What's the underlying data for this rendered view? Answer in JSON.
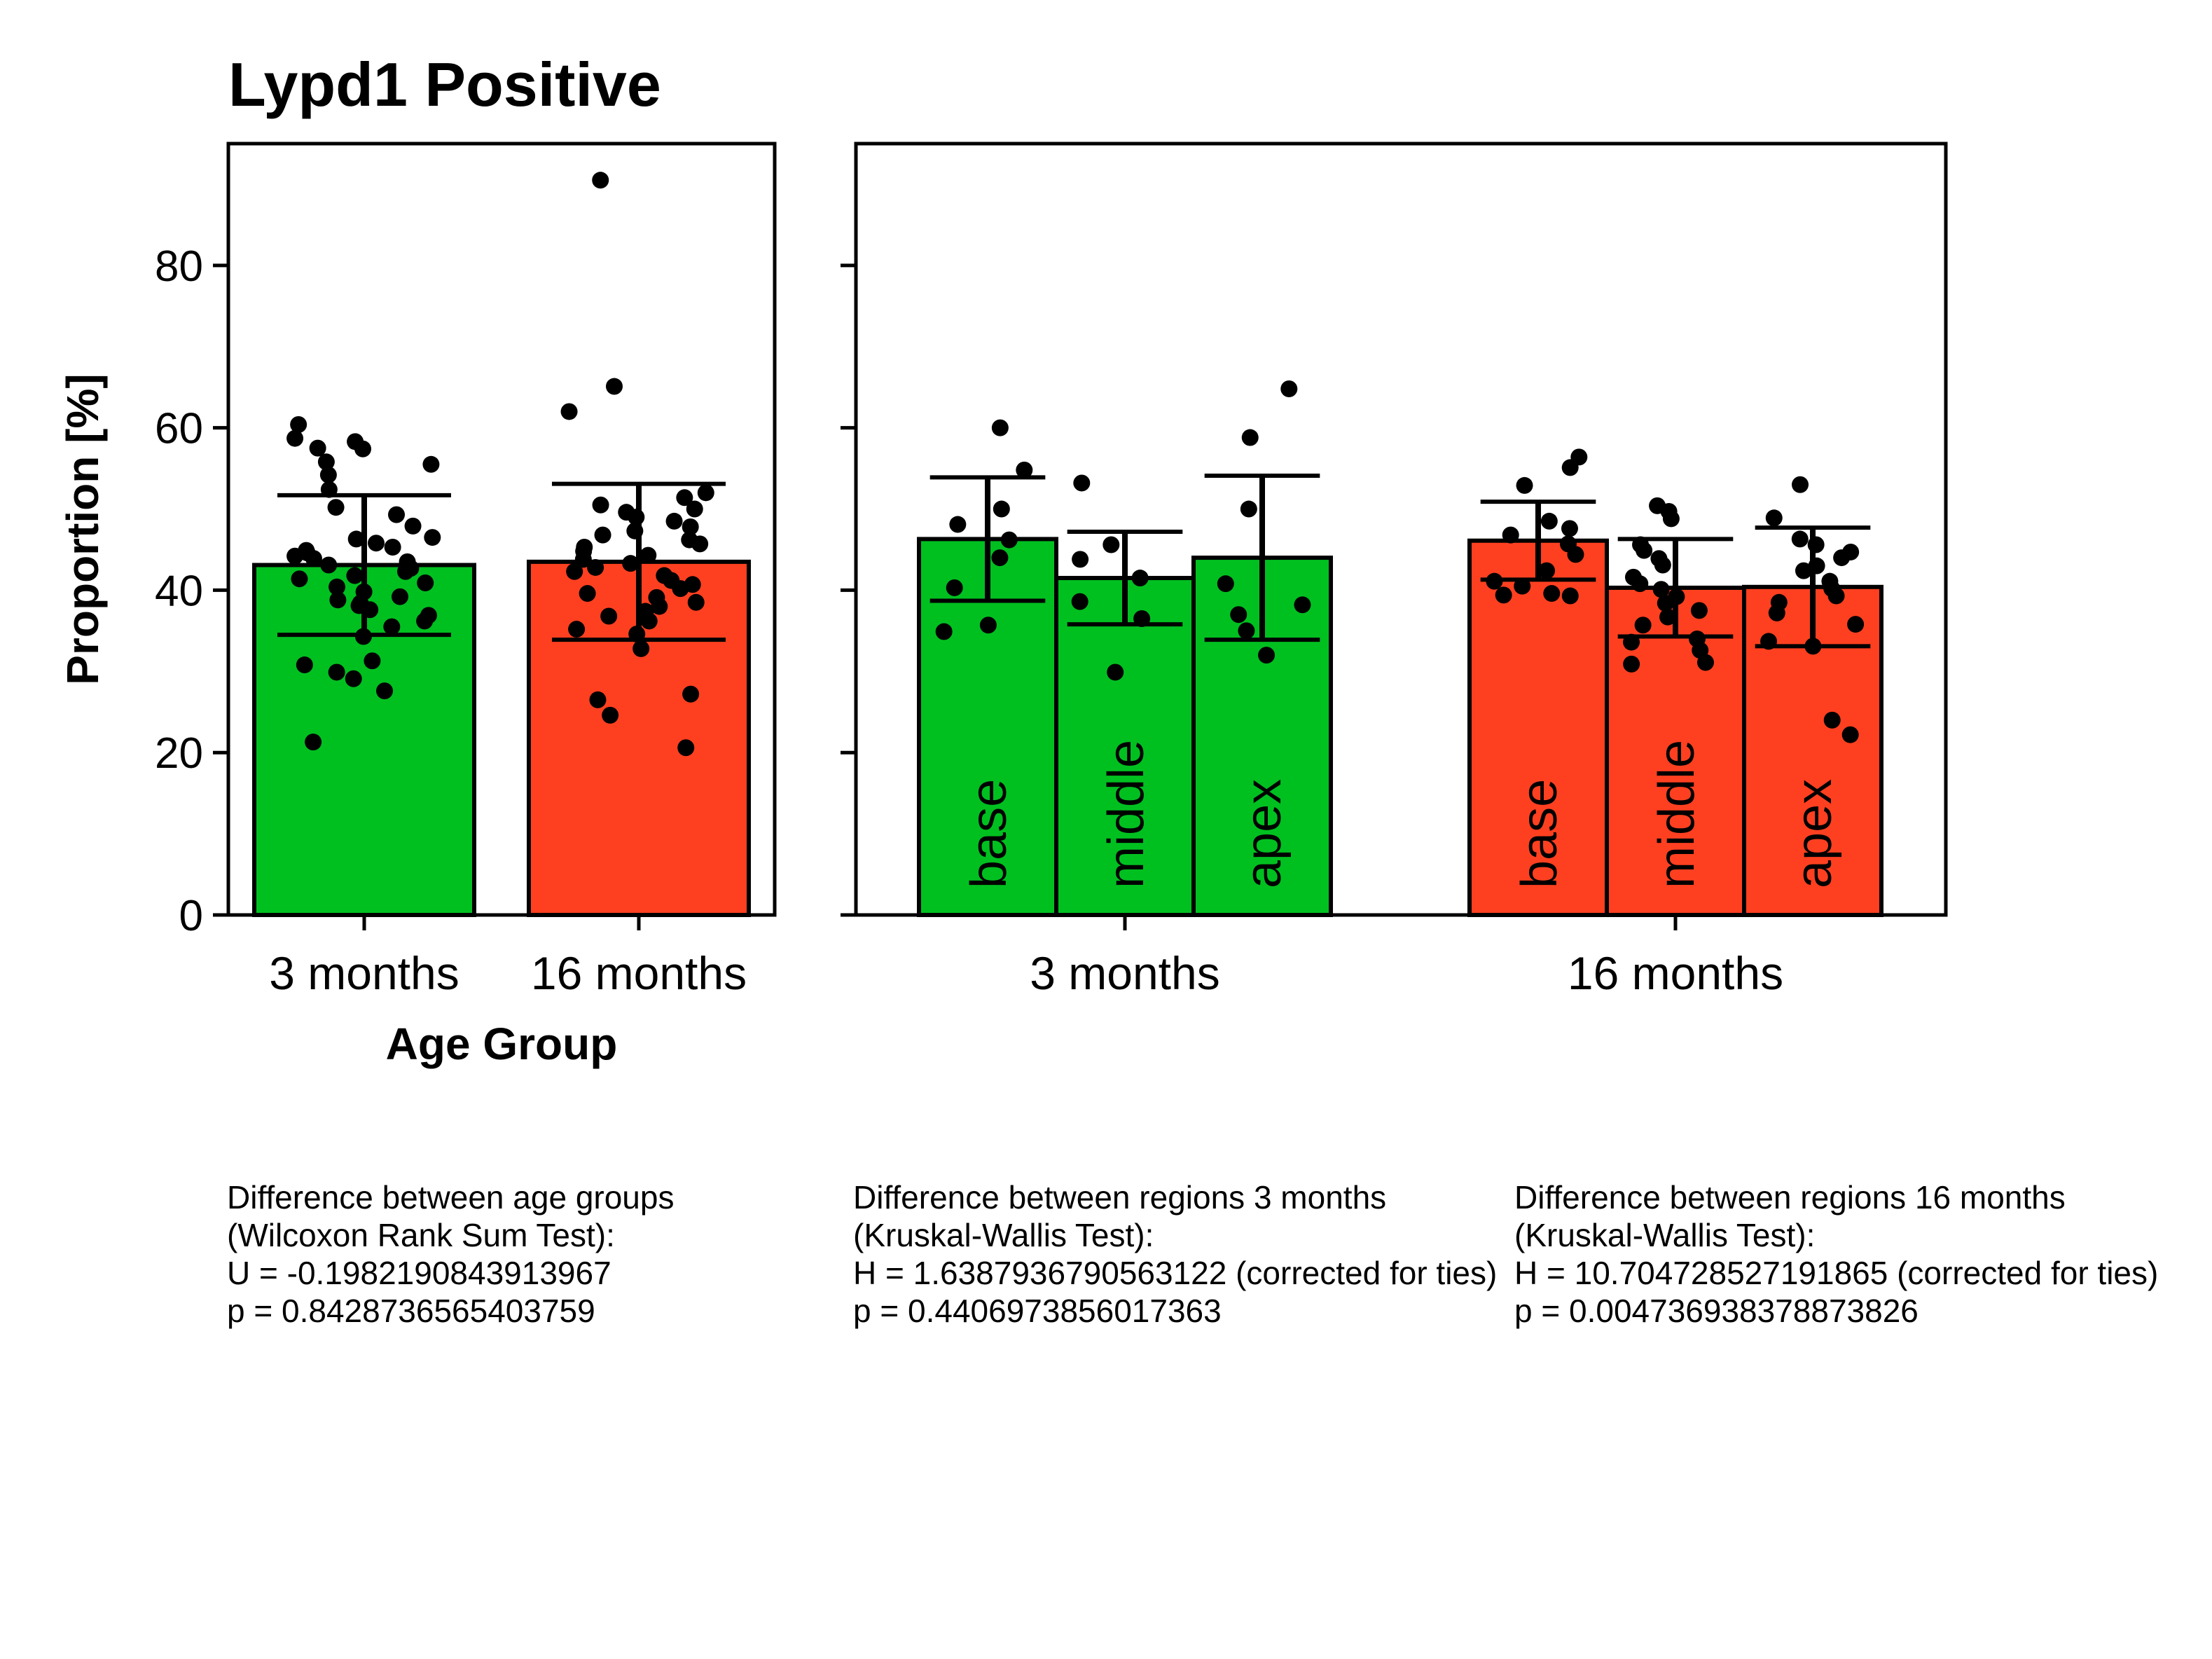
{
  "title": "Lypd1 Positive",
  "colors": {
    "group_3m": "#00c020",
    "group_16m": "#ff4020",
    "edge": "#000000"
  },
  "chart_data": [
    {
      "type": "bar",
      "panel": "left",
      "title": "Lypd1 Positive",
      "xlabel": "Age Group",
      "ylabel": "Proportion [%]",
      "ylim": [
        0,
        95
      ],
      "yticks": [
        0,
        20,
        40,
        60,
        80
      ],
      "ytick_labels": [
        "0",
        "20",
        "40",
        "60",
        "80"
      ],
      "grid": false,
      "categories": [
        "3 months",
        "16 months"
      ],
      "values": [
        43.1,
        43.5
      ],
      "errors": [
        8.6,
        9.6
      ],
      "points": [
        [
          58.3,
          57.4,
          55.8,
          58.7,
          57.5,
          60.4,
          55.5,
          54.2,
          52.4,
          50.2,
          49.3,
          47.9,
          46.5,
          46.3,
          45.8,
          45.3,
          44.9,
          44.6,
          44.2,
          43.9,
          43.5,
          43.1,
          42.7,
          42.3,
          41.8,
          41.4,
          40.9,
          40.4,
          39.8,
          39.2,
          38.8,
          38.4,
          38.1,
          37.6,
          36.9,
          36.2,
          35.5,
          34.3,
          31.3,
          30.8,
          29.9,
          29.1,
          27.6,
          21.3
        ],
        [
          90.5,
          65.1,
          62.0,
          52.0,
          51.4,
          50.5,
          50.0,
          49.6,
          49.0,
          48.5,
          47.8,
          47.3,
          46.8,
          46.2,
          45.7,
          45.3,
          44.8,
          44.3,
          43.8,
          43.3,
          42.8,
          42.3,
          41.8,
          41.2,
          40.7,
          40.2,
          39.6,
          39.1,
          38.5,
          38.0,
          37.4,
          36.8,
          36.2,
          35.2,
          34.6,
          32.8,
          27.2,
          26.5,
          24.6,
          20.6
        ]
      ]
    },
    {
      "type": "bar",
      "panel": "right",
      "ylim": [
        0,
        95
      ],
      "grid": false,
      "groups": [
        "3 months",
        "16 months"
      ],
      "series": [
        {
          "values": [
            46.3,
            41.5,
            44.0
          ],
          "errors": [
            7.6,
            5.7,
            10.1
          ],
          "bar_labels": [
            "base",
            "middle",
            "apex"
          ],
          "points": [
            [
              60.0,
              54.8,
              50.0,
              48.1,
              46.2,
              44.0,
              40.3,
              35.7,
              34.9
            ],
            [
              53.2,
              45.6,
              43.8,
              41.5,
              38.6,
              36.5,
              29.9
            ],
            [
              64.8,
              58.8,
              50.0,
              40.8,
              38.2,
              37.0,
              35.0,
              32.0
            ]
          ]
        },
        {
          "values": [
            46.1,
            40.3,
            40.4
          ],
          "errors": [
            4.8,
            6.0,
            7.3
          ],
          "bar_labels": [
            "base",
            "middle",
            "apex"
          ],
          "points": [
            [
              56.4,
              55.1,
              52.9,
              48.5,
              47.6,
              46.8,
              45.7,
              44.4,
              42.4,
              41.1,
              40.5,
              39.6,
              39.4,
              39.3
            ],
            [
              50.4,
              49.7,
              48.8,
              45.6,
              44.9,
              43.9,
              43.1,
              41.6,
              40.8,
              40.1,
              39.2,
              38.4,
              37.5,
              36.7,
              35.7,
              34.0,
              33.6,
              32.6,
              31.1,
              30.9
            ],
            [
              53.0,
              48.9,
              46.3,
              45.6,
              44.7,
              44.0,
              43.0,
              42.4,
              41.1,
              40.2,
              39.3,
              38.5,
              37.2,
              35.8,
              33.7,
              33.1,
              24.0,
              22.2
            ]
          ]
        }
      ]
    }
  ],
  "stats": [
    {
      "lines": [
        "Difference between age groups",
        "(Wilcoxon Rank Sum Test):",
        "U = -0.1982190843913967",
        "p = 0.8428736565403759"
      ]
    },
    {
      "lines": [
        "Difference between regions 3 months",
        "(Kruskal-Wallis Test):",
        "H = 1.6387936790563122 (corrected for ties)",
        "p = 0.4406973856017363"
      ]
    },
    {
      "lines": [
        "Difference between regions 16 months",
        "(Kruskal-Wallis Test):",
        "H = 10.704728527191865 (corrected for ties)",
        "p = 0.004736938378873826"
      ]
    }
  ]
}
